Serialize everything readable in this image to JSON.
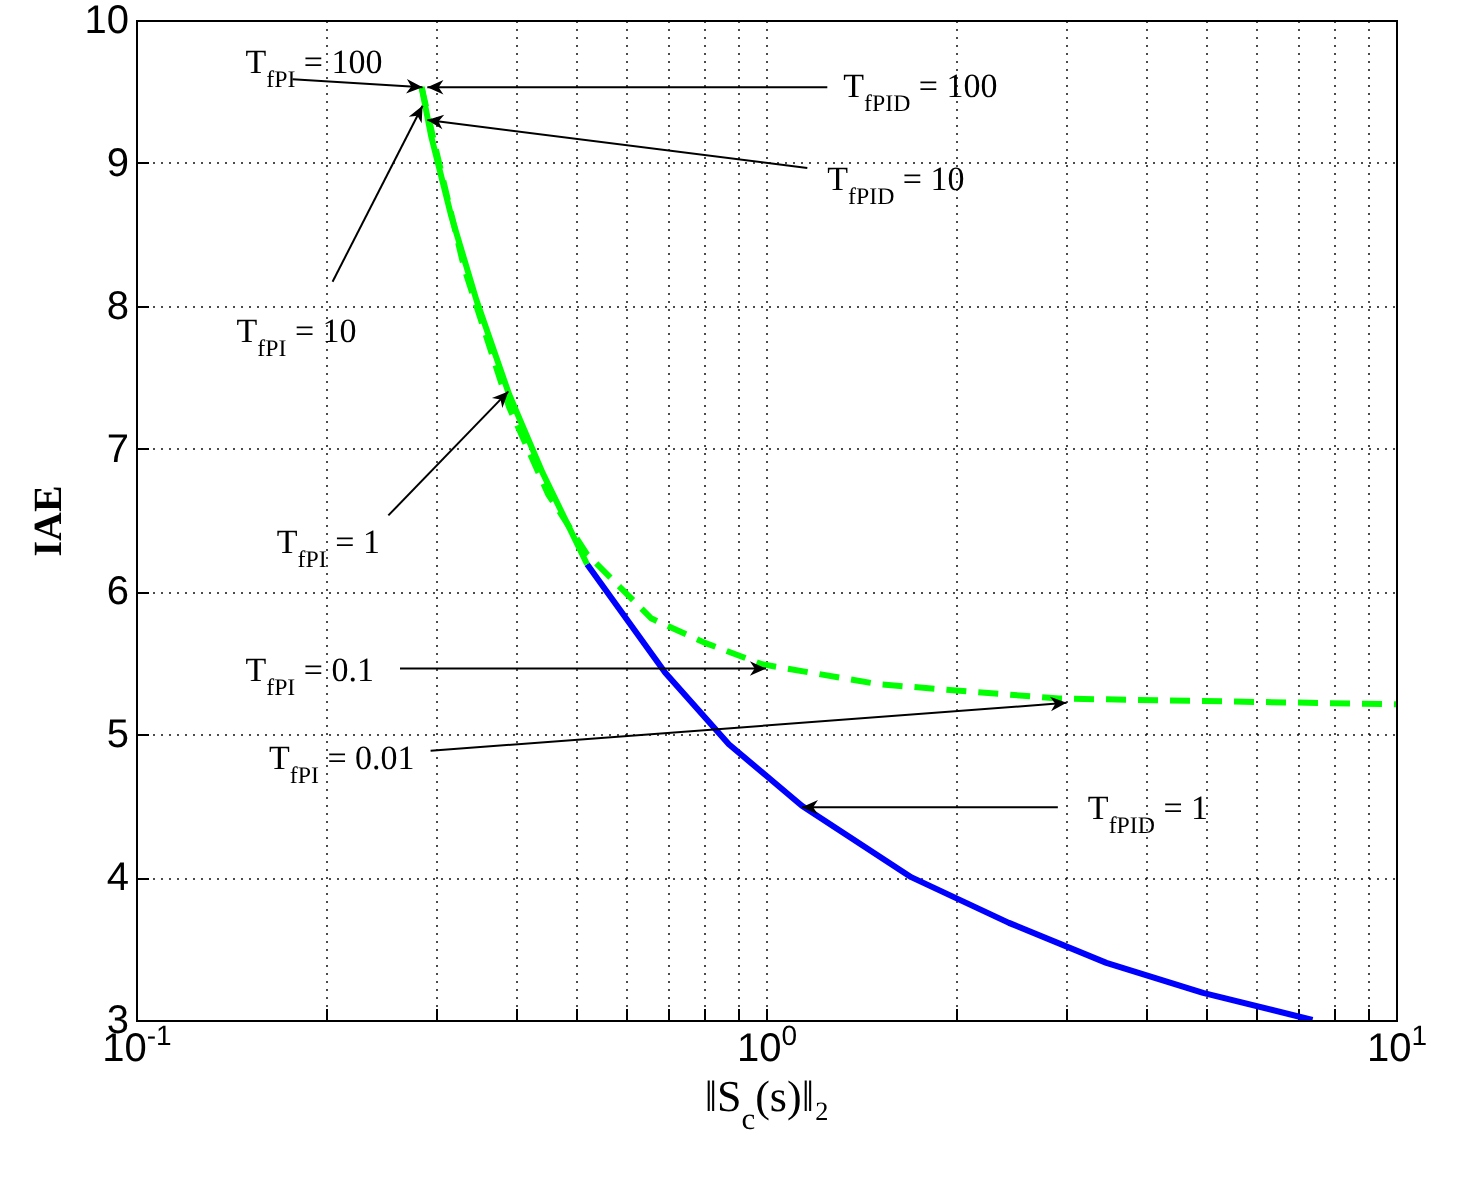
{
  "chart_data": {
    "type": "line",
    "xlabel": "‖S$_{c}$(s)‖₂",
    "ylabel": "IAE",
    "log": "x",
    "grid": true,
    "line_style": "solid",
    "xlim": [
      0.1,
      10
    ],
    "ylim": [
      3,
      10
    ],
    "xticks": [
      {
        "value": 0.1,
        "label": "10$^{-1}$"
      },
      {
        "value": 0.2,
        "label": null
      },
      {
        "value": 0.3,
        "label": null
      },
      {
        "value": 0.4,
        "label": null
      },
      {
        "value": 0.5,
        "label": null
      },
      {
        "value": 0.6,
        "label": null
      },
      {
        "value": 0.7,
        "label": null
      },
      {
        "value": 0.8,
        "label": null
      },
      {
        "value": 0.9,
        "label": null
      },
      {
        "value": 1,
        "label": "10$^{0}$"
      },
      {
        "value": 2,
        "label": null
      },
      {
        "value": 3,
        "label": null
      },
      {
        "value": 4,
        "label": null
      },
      {
        "value": 5,
        "label": null
      },
      {
        "value": 6,
        "label": null
      },
      {
        "value": 7,
        "label": null
      },
      {
        "value": 8,
        "label": null
      },
      {
        "value": 9,
        "label": null
      },
      {
        "value": 10,
        "label": "10$^{1}$"
      }
    ],
    "yticks": [
      3,
      4,
      5,
      6,
      7,
      8,
      9,
      10
    ],
    "series": [
      {
        "color": "#0000ff",
        "x": [
          0.52,
          0.692,
          0.873,
          1.14,
          1.7,
          2.43,
          3.47,
          4.94,
          7.37
        ],
        "values": [
          6.19,
          5.43,
          4.93,
          4.5,
          4.0,
          3.68,
          3.4,
          3.19,
          3.0
        ]
      },
      {
        "color": "#00ff00",
        "x": [
          0.284,
          0.294,
          0.316,
          0.347,
          0.391,
          0.442,
          0.52
        ],
        "values": [
          9.53,
          9.19,
          8.64,
          8.04,
          7.38,
          6.83,
          6.19
        ]
      },
      {
        "color": "#00ff00",
        "line_style": "dashed",
        "x": [
          0.284,
          0.299,
          0.332,
          0.391,
          0.451,
          0.52,
          0.658,
          0.8,
          0.986,
          1.51,
          2.92,
          10
        ],
        "values": [
          9.53,
          9.1,
          8.26,
          7.29,
          6.68,
          6.26,
          5.81,
          5.64,
          5.49,
          5.35,
          5.25,
          5.21
        ]
      }
    ],
    "annotations": [
      {
        "text": "T$_{fPI}$ = 100",
        "x": 0.285,
        "y": 9.53
      },
      {
        "text": "T$_{fPID}$ = 100",
        "x": 0.29,
        "y": 9.53
      },
      {
        "text": "T$_{fPID}$ = 10",
        "x": 0.29,
        "y": 9.3
      },
      {
        "text": "T$_{fPI}$ = 10",
        "x": 0.285,
        "y": 9.4
      },
      {
        "text": "T$_{fPI}$ = 1",
        "x": 0.39,
        "y": 7.4
      },
      {
        "text": "T$_{fPI}$ = 0.1",
        "x": 1.0,
        "y": 5.46
      },
      {
        "text": "T$_{fPI}$ = 0.01",
        "x": 3.0,
        "y": 5.22
      },
      {
        "text": "T$_{fPID}$ = 1",
        "x": 1.14,
        "y": 4.49
      }
    ]
  }
}
